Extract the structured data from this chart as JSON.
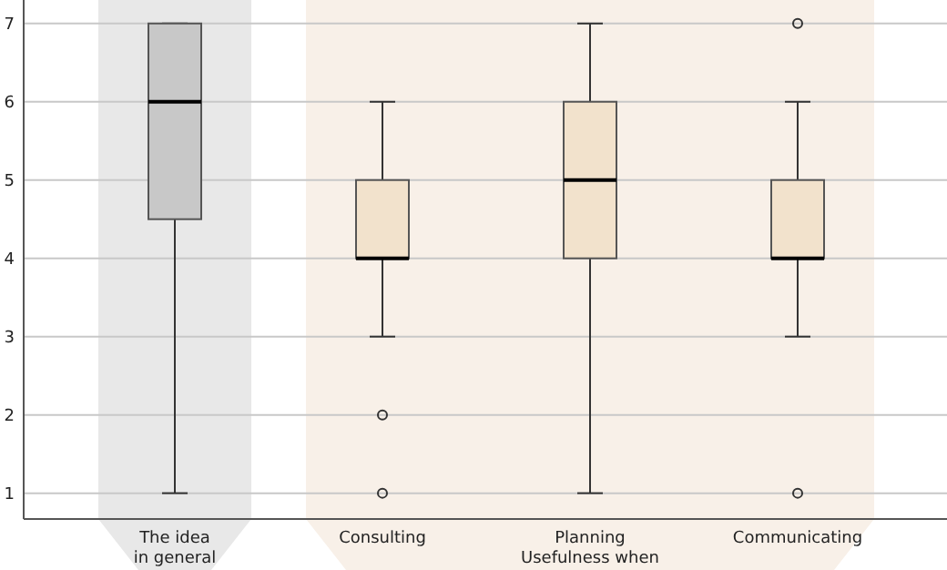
{
  "chart_data": {
    "type": "box",
    "xlabel": "Usefulness when",
    "categories": [
      "The idea\nin general",
      "Consulting",
      "Planning",
      "Communicating"
    ],
    "colors": [
      "#c8c8c8",
      "#f2e2cc",
      "#f2e2cc",
      "#f2e2cc"
    ],
    "boxes": [
      {
        "low": 1,
        "q1": 4.5,
        "median": 6,
        "q3": 7,
        "high": 7
      },
      {
        "low": 3,
        "q1": 4,
        "median": 4,
        "q3": 5,
        "high": 6,
        "outliers": [
          2,
          1
        ]
      },
      {
        "low": 1,
        "q1": 4,
        "median": 5,
        "q3": 6,
        "high": 7
      },
      {
        "low": 3,
        "q1": 4,
        "median": 4,
        "q3": 5,
        "high": 6,
        "outliers": [
          7,
          1
        ]
      }
    ],
    "bands": [
      {
        "axis": "x",
        "from": "The idea\nin general",
        "to": "The idea\nin general",
        "color": "#e8e8e8"
      },
      {
        "axis": "x",
        "from": "Consulting",
        "to": "Communicating",
        "color": "#f8f0e8"
      }
    ],
    "ylim": [
      0.67,
      7.3
    ],
    "yticks": [
      1,
      2,
      3,
      4,
      5,
      6,
      7
    ],
    "grid": "y"
  }
}
